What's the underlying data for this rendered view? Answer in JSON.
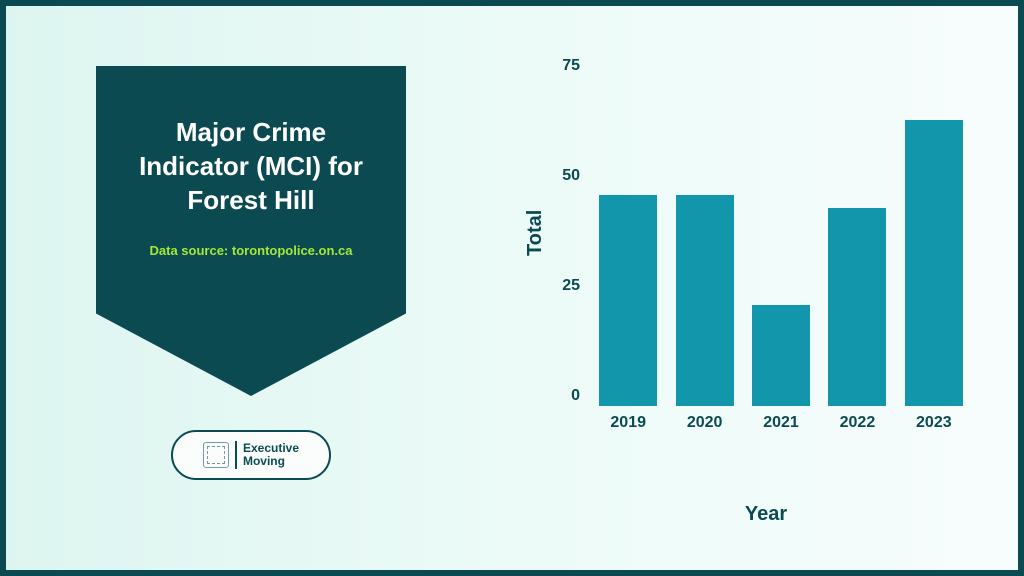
{
  "panel": {
    "title": "Major Crime Indicator (MCI) for Forest Hill",
    "source": "Data source: torontopolice.on.ca"
  },
  "logo": {
    "line1": "Executive",
    "line2": "Moving"
  },
  "chart": {
    "type": "bar",
    "ylabel": "Total",
    "xlabel": "Year",
    "categories": [
      "2019",
      "2020",
      "2021",
      "2022",
      "2023"
    ],
    "values": [
      48,
      48,
      23,
      45,
      65
    ],
    "bar_color": "#1196ab",
    "ylim": [
      0,
      75
    ],
    "yticks": [
      0,
      25,
      50,
      75
    ],
    "tick_fontsize": 16,
    "label_fontsize": 20,
    "label_color": "#0c4a52",
    "bar_width": 0.85,
    "background_gradient": [
      "#ddf5f0",
      "#f7fdfc"
    ],
    "frame_color": "#0c4a52"
  }
}
